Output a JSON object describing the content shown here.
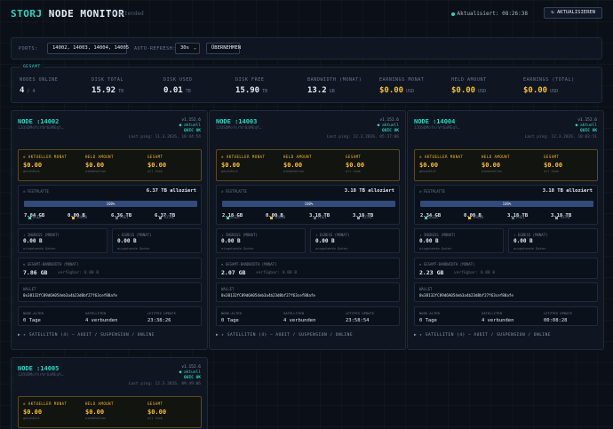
{
  "header": {
    "logo_a": "STORJ",
    "logo_b": " NODE MONITOR",
    "subtitle": "// extended",
    "updated_label": "Aktualisiert: ",
    "updated_time": "08:26:38",
    "refresh_label": "↻ AKTUALISIEREN"
  },
  "controls": {
    "ports_label": "PORTS:",
    "ports_value": "14002, 14003, 14004, 14005",
    "auto_label": "AUTO-REFRESH:",
    "auto_value": "30s",
    "apply_label": "ÜBERNEHMEN"
  },
  "summary": {
    "tag": "GESAMT",
    "stats": [
      {
        "label": "NODES ONLINE",
        "value": "4",
        "unit": "/ 4",
        "yellow": false
      },
      {
        "label": "DISK TOTAL",
        "value": "15.92",
        "unit": "TB",
        "yellow": false
      },
      {
        "label": "DISK USED",
        "value": "0.01",
        "unit": "TB",
        "yellow": false
      },
      {
        "label": "DISK FREE",
        "value": "15.90",
        "unit": "TB",
        "yellow": false
      },
      {
        "label": "BANDWIDTH (MONAT)",
        "value": "13.2",
        "unit": "GB",
        "yellow": false
      },
      {
        "label": "EARNINGS MONAT",
        "value": "$0.00",
        "unit": "USD",
        "yellow": true
      },
      {
        "label": "HELD AMOUNT",
        "value": "$0.00",
        "unit": "USD",
        "yellow": true
      },
      {
        "label": "EARNINGS (TOTAL)",
        "value": "$0.00",
        "unit": "USD",
        "yellow": true
      }
    ]
  },
  "nodes": [
    {
      "title": "NODE :14002",
      "id": "12QSDMofsrVr6aMEqY…",
      "version": "v1.152.6",
      "status": "● aktuell",
      "quic": "QUIC OK",
      "ping": "Last ping: 11.3.2026, 10:44:54",
      "earn": [
        {
          "label": "⊙ AKTUELLER MONAT",
          "value": "$0.00",
          "sub": "geschätzt"
        },
        {
          "label": "HELD AMOUNT",
          "value": "$0.00",
          "sub": "einbehalten"
        },
        {
          "label": "GESAMT",
          "value": "$0.00",
          "sub": "all time"
        }
      ],
      "disk_label": "⊙ FESTPLATTE",
      "disk_alloc": "6.37 TB alloziert",
      "disk_pct": 100,
      "disk_bar": "100%",
      "disk": [
        {
          "label": "USED",
          "value": "7.84 GB",
          "color": "#2dd4bf"
        },
        {
          "label": "TRASH",
          "value": "0.00 B",
          "color": "#fbbf24"
        },
        {
          "label": "FREI",
          "value": "6.36 TB",
          "color": "#64748b"
        },
        {
          "label": "TOTAL",
          "value": "6.37 TB",
          "color": "#94a3b8"
        }
      ],
      "ingress_label": "↓ INGRESS (MONAT)",
      "ingress": "0.00 B",
      "ingress_sub": "eingehende Daten",
      "egress_label": "↑ EGRESS (MONAT)",
      "egress": "0.00 B",
      "egress_sub": "ausgehende Daten",
      "bw_label": "⇅ GESAMT-BANDWIDTH (MONAT)",
      "bw": "7.86 GB",
      "bw_avail": "verfügbar: 0.00 B",
      "wallet_label": "WALLET",
      "wallet": "0x38132fC89d6A054eb3a4b23d8bf27f63cef88afe",
      "age_label": "NODE-ALTER",
      "age": "0 Tage",
      "sat_label": "SATELLITEN",
      "sat": "4 verbunden",
      "upd_label": "LETZTES UPDATE",
      "upd": "23:38:26",
      "footer": "▶ ▸ SATELLITEN (4) — AUDIT / SUSPENSION / ONLINE"
    },
    {
      "title": "NODE :14003",
      "id": "12QSDMofsrVr6aMEqY…",
      "version": "v1.152.6",
      "status": "● aktuell",
      "quic": "QUIC OK",
      "ping": "Last ping: 12.3.2026, 05:37:06",
      "earn": [
        {
          "label": "⊙ AKTUELLER MONAT",
          "value": "$0.00",
          "sub": "geschätzt"
        },
        {
          "label": "HELD AMOUNT",
          "value": "$0.00",
          "sub": "einbehalten"
        },
        {
          "label": "GESAMT",
          "value": "$0.00",
          "sub": "all time"
        }
      ],
      "disk_label": "⊙ FESTPLATTE",
      "disk_alloc": "3.18 TB alloziert",
      "disk_pct": 100,
      "disk_bar": "100%",
      "disk": [
        {
          "label": "USED",
          "value": "2.18 GB",
          "color": "#2dd4bf"
        },
        {
          "label": "TRASH",
          "value": "0.00 B",
          "color": "#fbbf24"
        },
        {
          "label": "FREI",
          "value": "3.18 TB",
          "color": "#64748b"
        },
        {
          "label": "TOTAL",
          "value": "3.18 TB",
          "color": "#94a3b8"
        }
      ],
      "ingress_label": "↓ INGRESS (MONAT)",
      "ingress": "0.00 B",
      "ingress_sub": "eingehende Daten",
      "egress_label": "↑ EGRESS (MONAT)",
      "egress": "0.00 B",
      "egress_sub": "ausgehende Daten",
      "bw_label": "⇅ GESAMT-BANDWIDTH (MONAT)",
      "bw": "2.07 GB",
      "bw_avail": "verfügbar: 0.00 B",
      "wallet_label": "WALLET",
      "wallet": "0x38132fC89d6A054eb3a4b23d8bf27f63cef88afe",
      "age_label": "NODE-ALTER",
      "age": "0 Tage",
      "sat_label": "SATELLITEN",
      "sat": "4 verbunden",
      "upd_label": "LETZTES UPDATE",
      "upd": "23:58:54",
      "footer": "▶ ▸ SATELLITEN (4) — AUDIT / SUSPENSION / ONLINE"
    },
    {
      "title": "NODE :14004",
      "id": "12QSDMofsrVr6aMEqY…",
      "version": "v1.152.6",
      "status": "● aktuell",
      "quic": "QUIC OK",
      "ping": "Last ping: 12.3.2026, 10:03:51",
      "earn": [
        {
          "label": "⊙ AKTUELLER MONAT",
          "value": "$0.00",
          "sub": "geschätzt"
        },
        {
          "label": "HELD AMOUNT",
          "value": "$0.00",
          "sub": "einbehalten"
        },
        {
          "label": "GESAMT",
          "value": "$0.00",
          "sub": "all time"
        }
      ],
      "disk_label": "⊙ FESTPLATTE",
      "disk_alloc": "3.18 TB alloziert",
      "disk_pct": 100,
      "disk_bar": "100%",
      "disk": [
        {
          "label": "USED",
          "value": "2.34 GB",
          "color": "#2dd4bf"
        },
        {
          "label": "TRASH",
          "value": "0.00 B",
          "color": "#fbbf24"
        },
        {
          "label": "FREI",
          "value": "3.18 TB",
          "color": "#64748b"
        },
        {
          "label": "TOTAL",
          "value": "3.18 TB",
          "color": "#94a3b8"
        }
      ],
      "ingress_label": "↓ INGRESS (MONAT)",
      "ingress": "0.00 B",
      "ingress_sub": "eingehende Daten",
      "egress_label": "↑ EGRESS (MONAT)",
      "egress": "0.00 B",
      "egress_sub": "ausgehende Daten",
      "bw_label": "⇅ GESAMT-BANDWIDTH (MONAT)",
      "bw": "2.23 GB",
      "bw_avail": "verfügbar: 0.00 B",
      "wallet_label": "WALLET",
      "wallet": "0x38132fC89d6A054eb3a4b23d8bf27f63cef88afe",
      "age_label": "NODE-ALTER",
      "age": "0 Tage",
      "sat_label": "SATELLITEN",
      "sat": "4 verbunden",
      "upd_label": "LETZTES UPDATE",
      "upd": "00:08:28",
      "footer": "▶ ▸ SATELLITEN (4) — AUDIT / SUSPENSION / ONLINE"
    },
    {
      "title": "NODE :14005",
      "id": "12QSDMofsrVr6aMEqY…",
      "version": "v1.152.6",
      "status": "● aktuell",
      "quic": "QUIC OK",
      "ping": "Last ping: 12.3.2026, 09:49:06",
      "earn": [
        {
          "label": "⊙ AKTUELLER MONAT",
          "value": "$0.00",
          "sub": "geschätzt"
        },
        {
          "label": "HELD AMOUNT",
          "value": "$0.00",
          "sub": "einbehalten"
        },
        {
          "label": "GESAMT",
          "value": "$0.00",
          "sub": "all time"
        }
      ]
    }
  ]
}
